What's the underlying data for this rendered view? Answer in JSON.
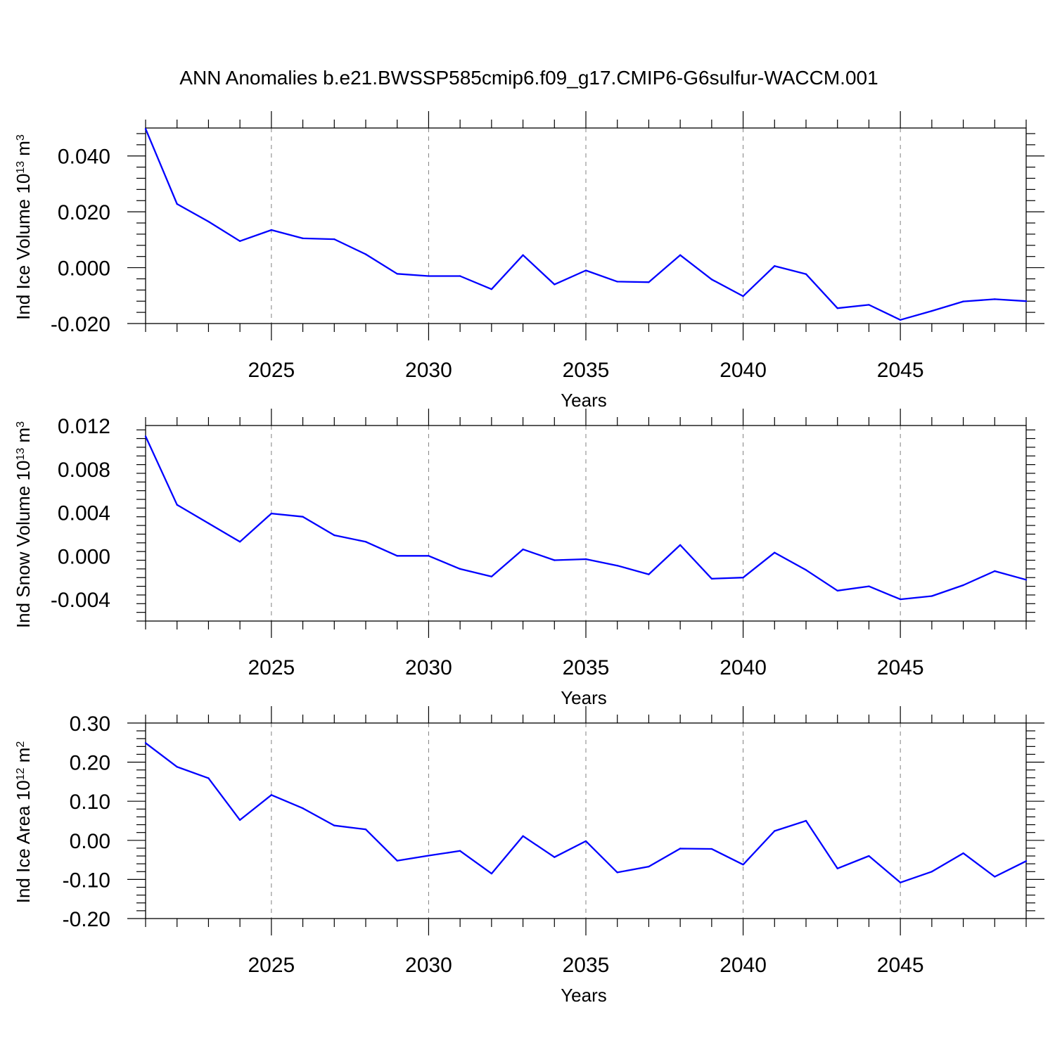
{
  "figure_title": "ANN Anomalies b.e21.BWSSP585cmip6.f09_g17.CMIP6-G6sulfur-WACCM.001",
  "colors": {
    "line": "#0000ff",
    "axis": "#000000",
    "grid": "#808080"
  },
  "chart_data": [
    {
      "type": "line",
      "ylabel": {
        "text": "Ind Ice Volume 10",
        "exp": "13",
        "unit": " m",
        "unit_exp": "3"
      },
      "xlabel": "Years",
      "xlim": [
        2021,
        2049
      ],
      "ylim": [
        -0.02,
        0.05
      ],
      "yticks": [
        -0.02,
        0.0,
        0.02,
        0.04
      ],
      "ytick_labels": [
        "-0.020",
        "0.000",
        "0.020",
        "0.040"
      ],
      "xticks": [
        2025,
        2030,
        2035,
        2040,
        2045
      ],
      "xtick_labels": [
        "2025",
        "2030",
        "2035",
        "2040",
        "2045"
      ],
      "grid": "vertical dashed at major x ticks",
      "x": [
        2021,
        2022,
        2023,
        2024,
        2025,
        2026,
        2027,
        2028,
        2029,
        2030,
        2031,
        2032,
        2033,
        2034,
        2035,
        2036,
        2037,
        2038,
        2039,
        2040,
        2041,
        2042,
        2043,
        2044,
        2045,
        2046,
        2047,
        2048,
        2049
      ],
      "y": [
        0.0497,
        0.0228,
        0.0165,
        0.0095,
        0.0135,
        0.0105,
        0.0102,
        0.0048,
        -0.0022,
        -0.003,
        -0.003,
        -0.0077,
        0.0045,
        -0.006,
        -0.001,
        -0.005,
        -0.0052,
        0.0045,
        -0.0042,
        -0.0102,
        0.0006,
        -0.0023,
        -0.0145,
        -0.0133,
        -0.0187,
        -0.0155,
        -0.0121,
        -0.0113,
        -0.012
      ]
    },
    {
      "type": "line",
      "ylabel": {
        "text": "Ind Snow Volume 10",
        "exp": "13",
        "unit": " m",
        "unit_exp": "3"
      },
      "xlabel": "Years",
      "xlim": [
        2021,
        2049
      ],
      "ylim": [
        -0.006,
        0.012
      ],
      "yticks": [
        -0.004,
        0.0,
        0.004,
        0.008,
        0.012
      ],
      "ytick_labels": [
        "-0.004",
        "0.000",
        "0.004",
        "0.008",
        "0.012"
      ],
      "xticks": [
        2025,
        2030,
        2035,
        2040,
        2045
      ],
      "xtick_labels": [
        "2025",
        "2030",
        "2035",
        "2040",
        "2045"
      ],
      "grid": "vertical dashed at major x ticks",
      "x": [
        2021,
        2022,
        2023,
        2024,
        2025,
        2026,
        2027,
        2028,
        2029,
        2030,
        2031,
        2032,
        2033,
        2034,
        2035,
        2036,
        2037,
        2038,
        2039,
        2040,
        2041,
        2042,
        2043,
        2044,
        2045,
        2046,
        2047,
        2048,
        2049
      ],
      "y": [
        0.011,
        0.0047,
        0.003,
        0.0013,
        0.0039,
        0.0036,
        0.0019,
        0.0013,
        0.0,
        0.0,
        -0.0012,
        -0.0019,
        0.0006,
        -0.0004,
        -0.0003,
        -0.0009,
        -0.0017,
        0.001,
        -0.0021,
        -0.002,
        0.0003,
        -0.0013,
        -0.0032,
        -0.0028,
        -0.004,
        -0.0037,
        -0.0027,
        -0.0014,
        -0.0022
      ]
    },
    {
      "type": "line",
      "ylabel": {
        "text": "Ind Ice Area 10",
        "exp": "12",
        "unit": " m",
        "unit_exp": "2"
      },
      "xlabel": "Years",
      "xlim": [
        2021,
        2049
      ],
      "ylim": [
        -0.2,
        0.3
      ],
      "yticks": [
        -0.2,
        -0.1,
        0.0,
        0.1,
        0.2,
        0.3
      ],
      "ytick_labels": [
        "-0.20",
        "-0.10",
        "0.00",
        "0.10",
        "0.20",
        "0.30"
      ],
      "xticks": [
        2025,
        2030,
        2035,
        2040,
        2045
      ],
      "xtick_labels": [
        "2025",
        "2030",
        "2035",
        "2040",
        "2045"
      ],
      "grid": "vertical dashed at major x ticks",
      "x": [
        2021,
        2022,
        2023,
        2024,
        2025,
        2026,
        2027,
        2028,
        2029,
        2030,
        2031,
        2032,
        2033,
        2034,
        2035,
        2036,
        2037,
        2038,
        2039,
        2040,
        2041,
        2042,
        2043,
        2044,
        2045,
        2046,
        2047,
        2048,
        2049
      ],
      "y": [
        0.249,
        0.188,
        0.159,
        0.052,
        0.116,
        0.082,
        0.038,
        0.028,
        -0.052,
        -0.039,
        -0.027,
        -0.085,
        0.011,
        -0.043,
        -0.002,
        -0.082,
        -0.067,
        -0.021,
        -0.022,
        -0.062,
        0.024,
        0.05,
        -0.072,
        -0.04,
        -0.108,
        -0.08,
        -0.033,
        -0.093,
        -0.053
      ]
    }
  ]
}
